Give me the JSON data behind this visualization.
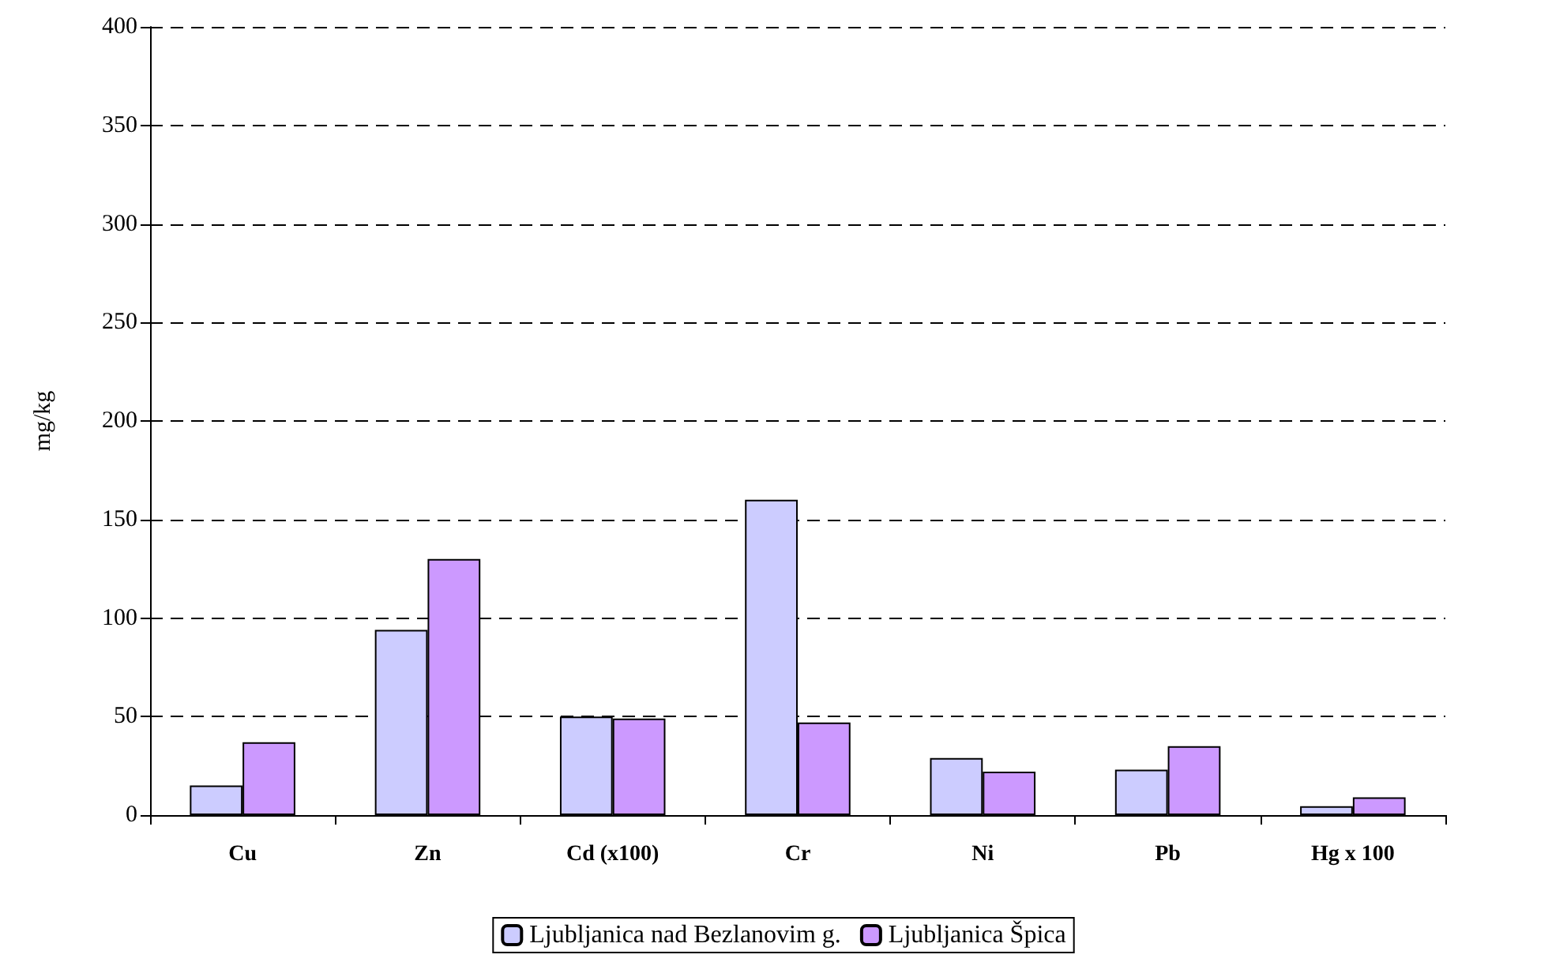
{
  "chart_data": {
    "type": "bar",
    "ylabel": "mg/kg",
    "categories": [
      "Cu",
      "Zn",
      "Cd (x100)",
      "Cr",
      "Ni",
      "Pb",
      "Hg x 100"
    ],
    "series": [
      {
        "name": "Ljubljanica nad Bezlanovim g.",
        "color": "#ccccff",
        "values": [
          15,
          94,
          50,
          160,
          29,
          23,
          4.5
        ]
      },
      {
        "name": "Ljubljanica Špica",
        "color": "#cc99ff",
        "values": [
          37,
          130,
          49,
          47,
          22,
          35,
          9
        ]
      }
    ],
    "ylim": [
      0,
      400
    ],
    "yticks": [
      0,
      50,
      100,
      150,
      200,
      250,
      300,
      350,
      400
    ],
    "grid": "y",
    "legend": "bottom"
  }
}
